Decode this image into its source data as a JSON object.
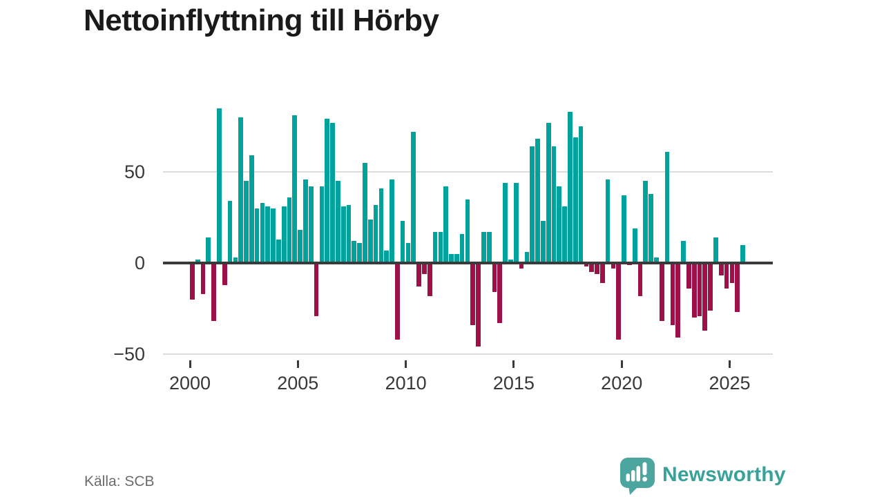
{
  "title": "Nettoinflyttning till Hörby",
  "footer": {
    "source": "Källa: SCB"
  },
  "brand": {
    "name": "Newsworthy",
    "icon": "newsworthy-speech-bubble-chart-icon"
  },
  "colors": {
    "positive": "#00a29b",
    "negative": "#9e1148",
    "axis": "#3a3a3a",
    "grid": "#dcdcdc",
    "tick_label": "#383838",
    "source_text": "#6b6b6b",
    "brand": "#38a29a",
    "title_text": "#1a1a1a",
    "background": "#ffffff"
  },
  "chart_data": {
    "type": "bar",
    "title": "Nettoinflyttning till Hörby",
    "frequency": "quarterly",
    "start_period": "2000 Q1",
    "end_period": "2025 Q3",
    "grid": true,
    "legend": false,
    "ylim": [
      -62,
      91
    ],
    "y_axis_ticks": [
      {
        "label": "50",
        "value": 50
      },
      {
        "label": "0",
        "value": 0
      },
      {
        "label": "−50",
        "value": -50
      }
    ],
    "x_axis_ticks": [
      {
        "label": "2000",
        "year": 2000
      },
      {
        "label": "2005",
        "year": 2005
      },
      {
        "label": "2010",
        "year": 2010
      },
      {
        "label": "2015",
        "year": 2015
      },
      {
        "label": "2020",
        "year": 2020
      },
      {
        "label": "2025",
        "year": 2025
      }
    ],
    "color_positive": "#00a29b",
    "color_negative": "#9e1148",
    "series": [
      {
        "name": "Nettoinflyttning",
        "start_year": 2000,
        "values": [
          -20,
          2,
          -17,
          14,
          -32,
          85,
          -12,
          34,
          3,
          80,
          45,
          59,
          30,
          33,
          31,
          30,
          13,
          31,
          36,
          81,
          18,
          46,
          42,
          -29,
          42,
          79,
          77,
          45,
          31,
          32,
          12,
          11,
          55,
          24,
          32,
          41,
          7,
          46,
          -42,
          23,
          11,
          72,
          -13,
          -6,
          -18,
          17,
          17,
          42,
          5,
          5,
          16,
          35,
          -34,
          -46,
          17,
          17,
          -16,
          -33,
          44,
          2,
          44,
          -3,
          6,
          64,
          68,
          23,
          77,
          64,
          42,
          31,
          83,
          69,
          75,
          -2,
          -5,
          -6,
          -11,
          46,
          -3,
          -42,
          37,
          -1,
          19,
          -18,
          45,
          38,
          3,
          -32,
          61,
          -34,
          -41,
          12,
          -14,
          -30,
          -29,
          -37,
          -26,
          14,
          -7,
          -14,
          -11,
          -27,
          10
        ]
      }
    ]
  }
}
